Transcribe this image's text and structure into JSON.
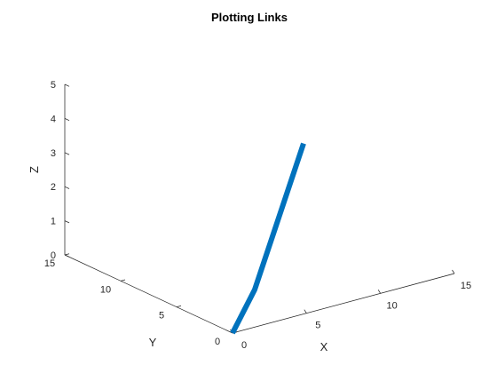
{
  "chart_data": {
    "type": "line",
    "title": "Plotting Links",
    "xlabel": "X",
    "ylabel": "Y",
    "zlabel": "Z",
    "xlim": [
      0,
      15
    ],
    "ylim": [
      0,
      15
    ],
    "zlim": [
      0,
      5
    ],
    "xticks": [
      "0",
      "5",
      "10",
      "15"
    ],
    "yticks": [
      "0",
      "5",
      "10",
      "15"
    ],
    "zticks": [
      "0",
      "1",
      "2",
      "3",
      "4",
      "5"
    ],
    "grid": false,
    "series": [
      {
        "x": [
          0,
          1.5,
          4.8
        ],
        "y": [
          0,
          0,
          0
        ],
        "z": [
          0,
          1.1,
          5
        ],
        "color": "#0072BD"
      }
    ]
  }
}
